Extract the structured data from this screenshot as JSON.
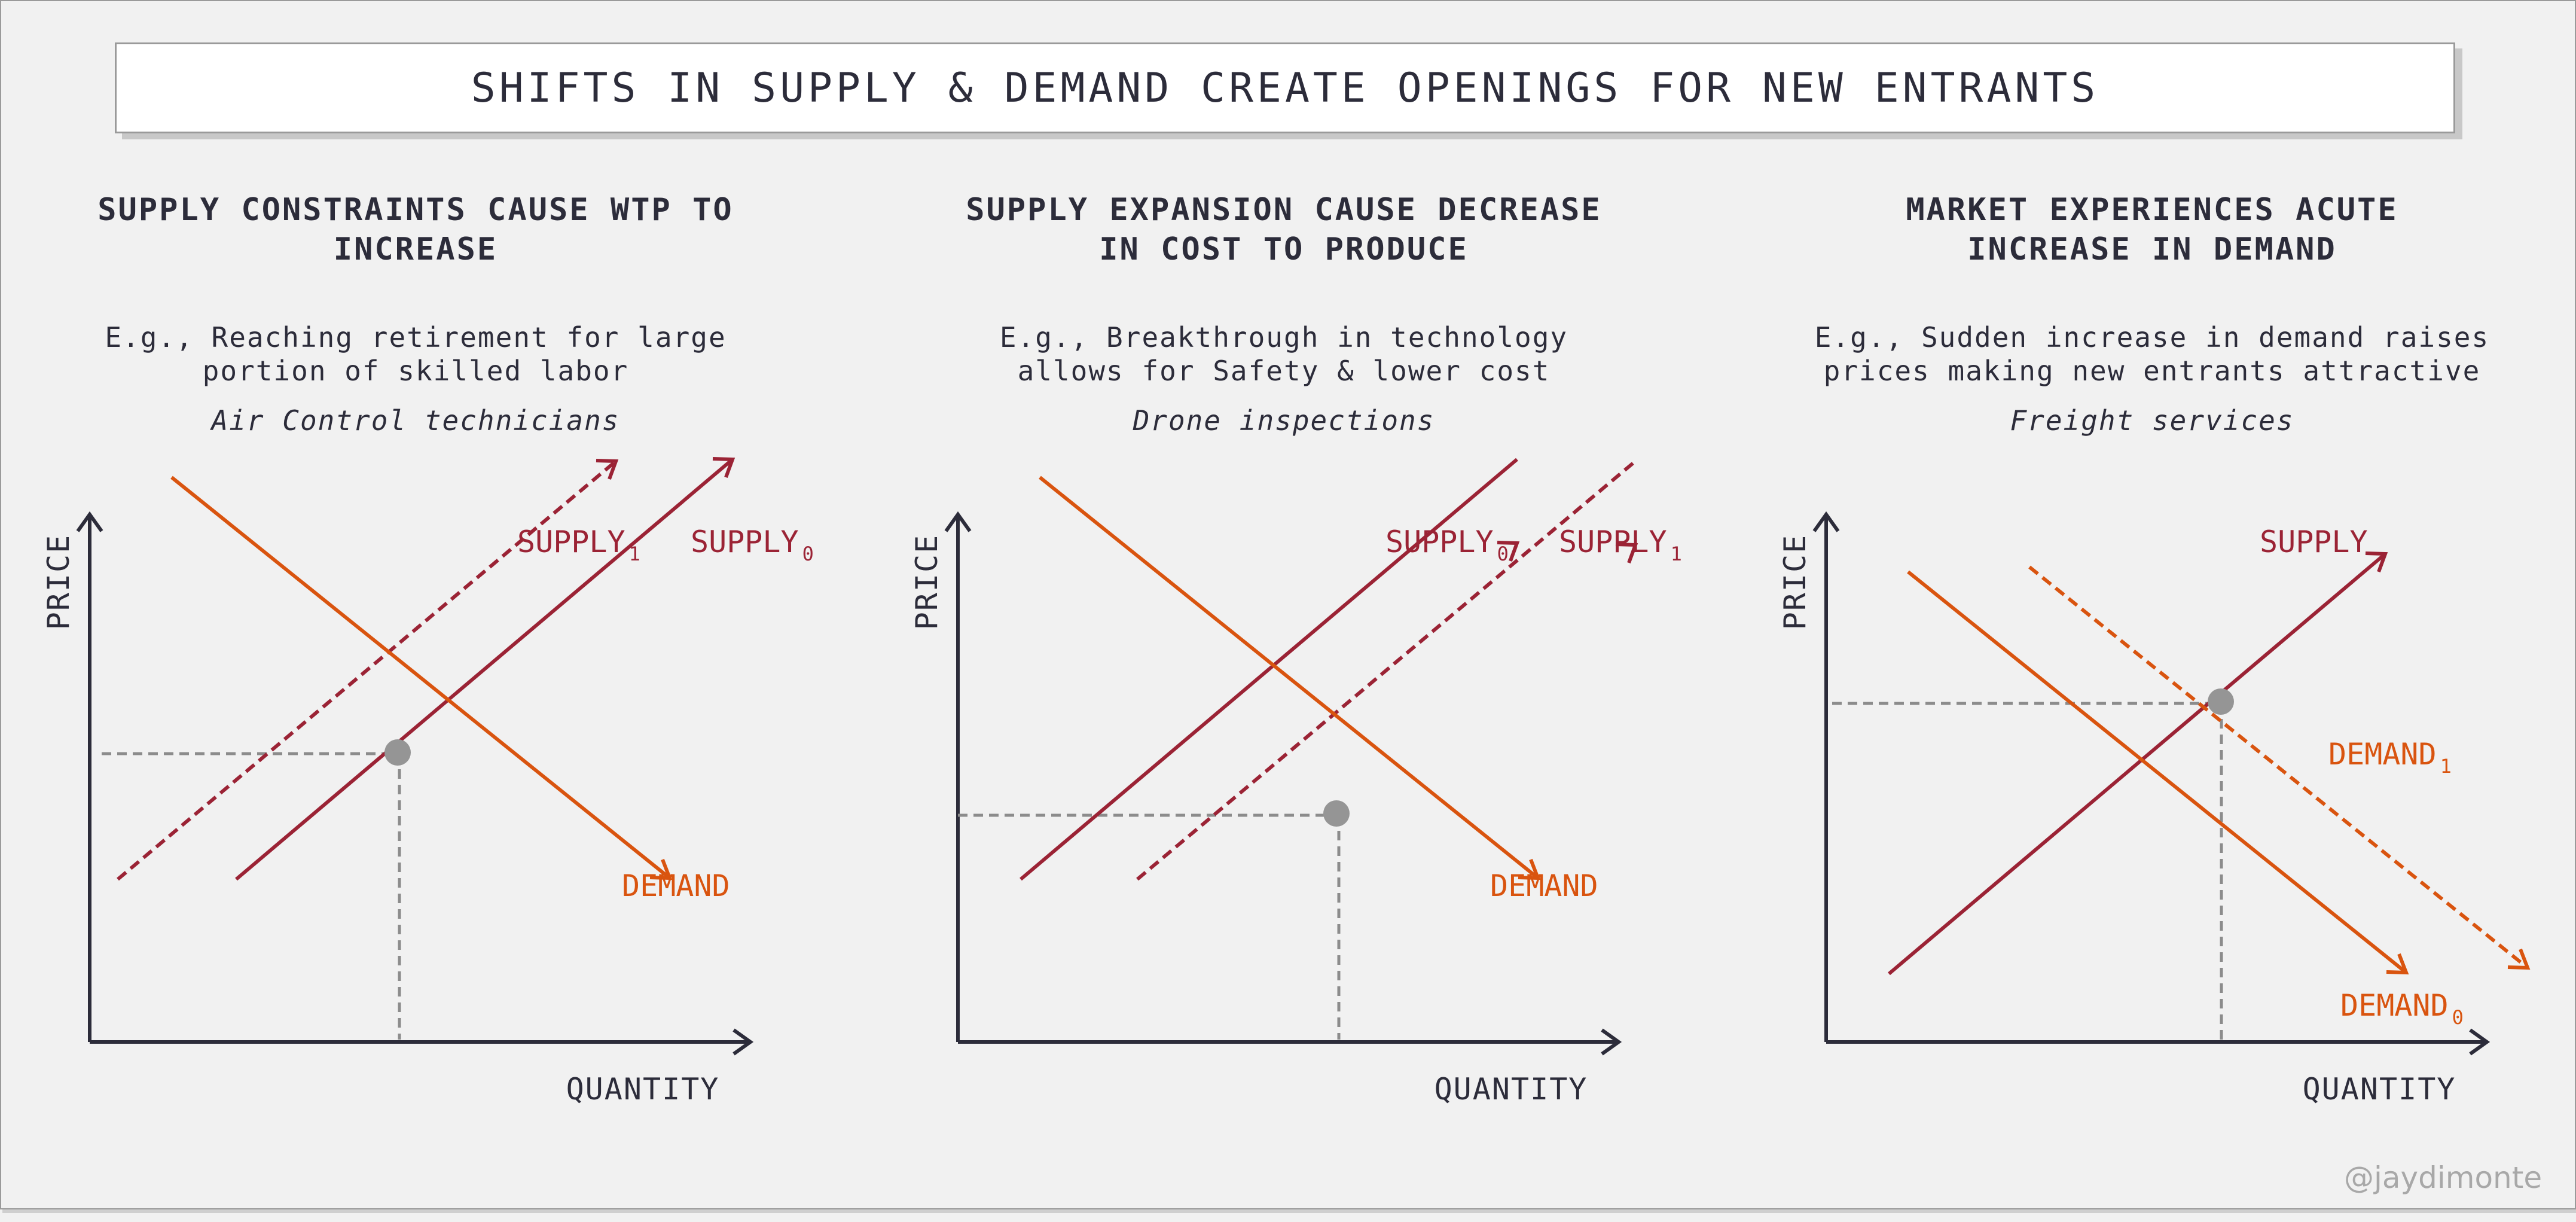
{
  "header": {
    "title": "SHIFTS IN SUPPLY & DEMAND CREATE OPENINGS FOR NEW ENTRANTS"
  },
  "panels": [
    {
      "title_line1": "SUPPLY CONSTRAINTS CAUSE WTP TO",
      "title_line2": "INCREASE",
      "desc_line1": "E.g., Reaching retirement for large",
      "desc_line2": "portion of skilled labor",
      "example": "Air Control technicians"
    },
    {
      "title_line1": "SUPPLY EXPANSION CAUSE DECREASE",
      "title_line2": "IN COST TO PRODUCE",
      "desc_line1": "E.g., Breakthrough in technology",
      "desc_line2": "allows for Safety & lower cost",
      "example": "Drone inspections"
    },
    {
      "title_line1": "MARKET EXPERIENCES ACUTE",
      "title_line2": "INCREASE IN DEMAND",
      "desc_line1": "E.g., Sudden increase in demand raises",
      "desc_line2": "prices making new entrants attractive",
      "example": "Freight services"
    }
  ],
  "charts": [
    {
      "ylabel": "PRICE",
      "xlabel": "QUANTITY",
      "labels": {
        "supply_a": "SUPPLY",
        "supply_a_sub": "1",
        "supply_b": "SUPPLY",
        "supply_b_sub": "0",
        "demand": "DEMAND"
      }
    },
    {
      "ylabel": "PRICE",
      "xlabel": "QUANTITY",
      "labels": {
        "supply_a": "SUPPLY",
        "supply_a_sub": "0",
        "supply_b": "SUPPLY",
        "supply_b_sub": "1",
        "demand": "DEMAND"
      }
    },
    {
      "ylabel": "PRICE",
      "xlabel": "QUANTITY",
      "labels": {
        "supply": "SUPPLY",
        "demand_a": "DEMAND",
        "demand_a_sub": "1",
        "demand_b": "DEMAND",
        "demand_b_sub": "0"
      }
    }
  ],
  "colors": {
    "supply": "#9b2335",
    "demand": "#d9540f",
    "axis": "#2c2c3a",
    "guide": "#8c8c8c",
    "point": "#959595"
  },
  "credit": "@jaydimonte"
}
